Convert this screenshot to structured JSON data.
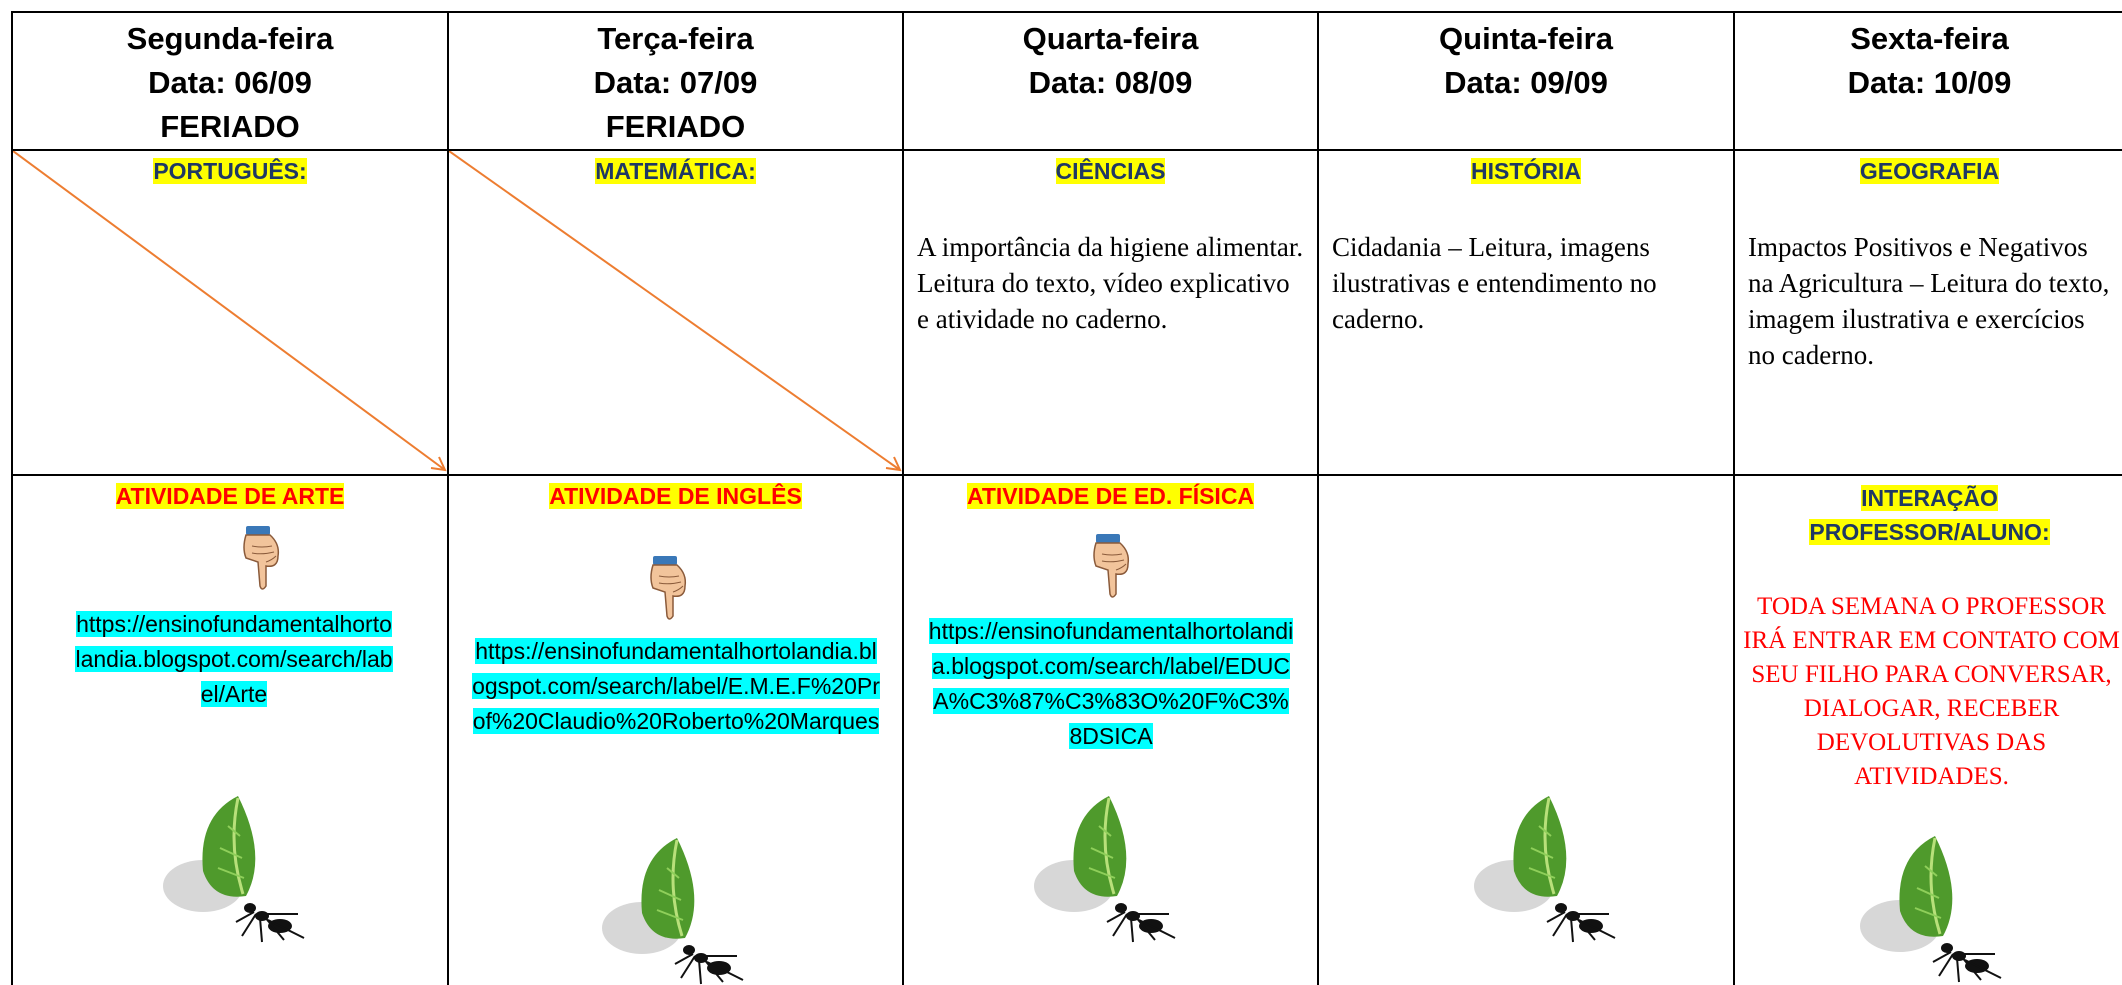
{
  "table": {
    "columns": [
      {
        "day": "Segunda-feira",
        "date": "Data: 06/09",
        "note": "FERIADO",
        "subject": "PORTUGUÊS:",
        "activity": "ATIVIDADE DE ARTE",
        "link": "https://ensinofundamentalhortolandia.blogspot.com/search/label/Arte"
      },
      {
        "day": "Terça-feira",
        "date": "Data: 07/09",
        "note": "FERIADO",
        "subject": "MATEMÁTICA:",
        "activity": "ATIVIDADE DE INGLÊS",
        "link": "https://ensinofundamentalhortolandia.blogspot.com/search/label/E.M.E.F%20Prof%20Claudio%20Roberto%20Marques"
      },
      {
        "day": "Quarta-feira",
        "date": "Data: 08/09",
        "subject": "CIÊNCIAS",
        "description": "A importância da higiene alimentar. Leitura do texto, vídeo explicativo e atividade no caderno.",
        "activity": "ATIVIDADE DE ED. FÍSICA",
        "link": "https://ensinofundamentalhortolandia.blogspot.com/search/label/EDUCA%C3%87%C3%83O%20F%C3%8DSICA"
      },
      {
        "day": "Quinta-feira",
        "date": "Data: 09/09",
        "subject": "HISTÓRIA",
        "description": "Cidadania – Leitura, imagens ilustrativas e entendimento no caderno."
      },
      {
        "day": "Sexta-feira",
        "date": "Data: 10/09",
        "subject": "GEOGRAFIA",
        "description": "Impactos Positivos e Negativos na Agricultura – Leitura do texto, imagem ilustrativa e exercícios no caderno.",
        "activity": "INTERAÇÃO PROFESSOR/ALUNO:",
        "message": "TODA SEMANA O PROFESSOR IRÁ ENTRAR EM CONTATO COM SEU FILHO PARA CONVERSAR, DIALOGAR, RECEBER DEVOLUTIVAS DAS ATIVIDADES."
      }
    ]
  }
}
